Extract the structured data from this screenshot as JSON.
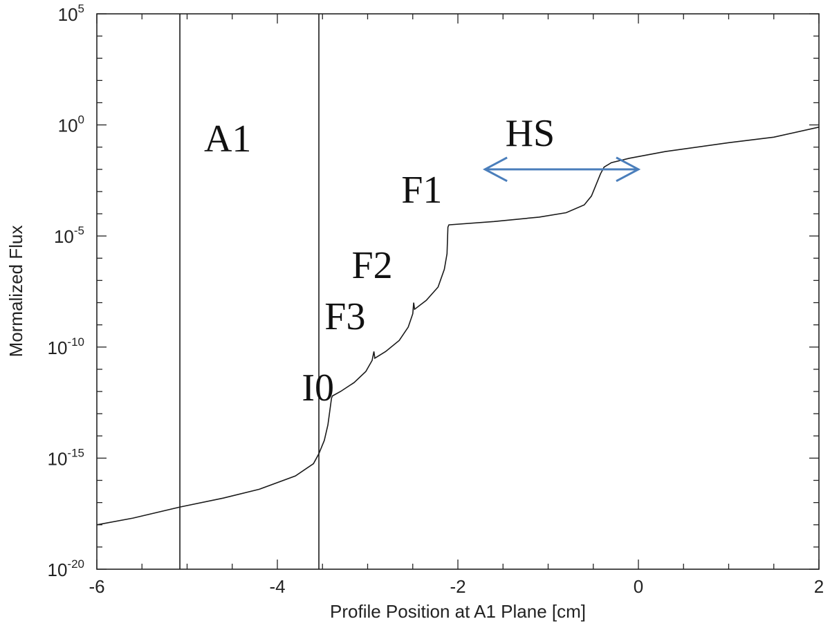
{
  "chart_data": {
    "type": "line",
    "title": "",
    "xlabel": "Profile Position at A1 Plane [cm]",
    "ylabel": "Mormalized Flux",
    "xlim": [
      -6,
      2
    ],
    "ylim_log10": [
      -20,
      5
    ],
    "yscale": "log",
    "grid": false,
    "x_ticks": [
      {
        "value": -6,
        "label": "-6"
      },
      {
        "value": -4,
        "label": "-4"
      },
      {
        "value": -2,
        "label": "-2"
      },
      {
        "value": 0,
        "label": "0"
      },
      {
        "value": 2,
        "label": "2"
      }
    ],
    "y_ticks": [
      {
        "exp": 5,
        "base": "10",
        "sup": "5"
      },
      {
        "exp": 0,
        "base": "10",
        "sup": "0"
      },
      {
        "exp": -5,
        "base": "10",
        "sup": "-5"
      },
      {
        "exp": -10,
        "base": "10",
        "sup": "-10"
      },
      {
        "exp": -15,
        "base": "10",
        "sup": "-15"
      },
      {
        "exp": -20,
        "base": "10",
        "sup": "-20"
      }
    ],
    "series": [
      {
        "x": [
          -6.0,
          -5.6,
          -5.08,
          -4.6,
          -4.2,
          -3.8,
          -3.6,
          -3.54,
          -3.48,
          -3.44,
          -3.41,
          -3.4,
          -3.39,
          -3.3,
          -3.15,
          -3.02,
          -2.95,
          -2.93,
          -2.92,
          -2.8,
          -2.65,
          -2.55,
          -2.5,
          -2.49,
          -2.48,
          -2.35,
          -2.22,
          -2.15,
          -2.12,
          -2.11,
          -2.1,
          -1.6,
          -1.1,
          -0.8,
          -0.6,
          -0.52,
          -0.47,
          -0.42,
          -0.38,
          -0.3,
          -0.1,
          0.3,
          1.0,
          1.5,
          2.0
        ],
        "y_log10": [
          -18.0,
          -17.7,
          -17.2,
          -16.8,
          -16.4,
          -15.8,
          -15.25,
          -14.8,
          -14.2,
          -13.5,
          -12.6,
          -12.3,
          -12.2,
          -12.0,
          -11.6,
          -11.1,
          -10.6,
          -10.2,
          -10.5,
          -10.2,
          -9.7,
          -9.1,
          -8.5,
          -8.0,
          -8.3,
          -7.9,
          -7.3,
          -6.5,
          -5.8,
          -4.6,
          -4.5,
          -4.35,
          -4.15,
          -3.95,
          -3.6,
          -3.2,
          -2.7,
          -2.2,
          -1.9,
          -1.7,
          -1.5,
          -1.2,
          -0.8,
          -0.55,
          -0.1
        ]
      }
    ],
    "vertical_lines": [
      -5.08,
      -3.54
    ],
    "annotations": [
      {
        "text": "A1",
        "x": -4.55,
        "y_log10": -1.2
      },
      {
        "text": "HS",
        "x": -1.2,
        "y_log10": -0.95
      },
      {
        "text": "F1",
        "x": -2.4,
        "y_log10": -3.5
      },
      {
        "text": "F2",
        "x": -2.95,
        "y_log10": -6.9
      },
      {
        "text": "F3",
        "x": -3.25,
        "y_log10": -9.2
      },
      {
        "text": "I0",
        "x": -3.55,
        "y_log10": -12.4
      }
    ],
    "arrow": {
      "x1": -1.7,
      "x2": 0.0,
      "y_log10": -2.0,
      "color": "#4a7ebb"
    },
    "line_color": "#1a1a1a"
  }
}
